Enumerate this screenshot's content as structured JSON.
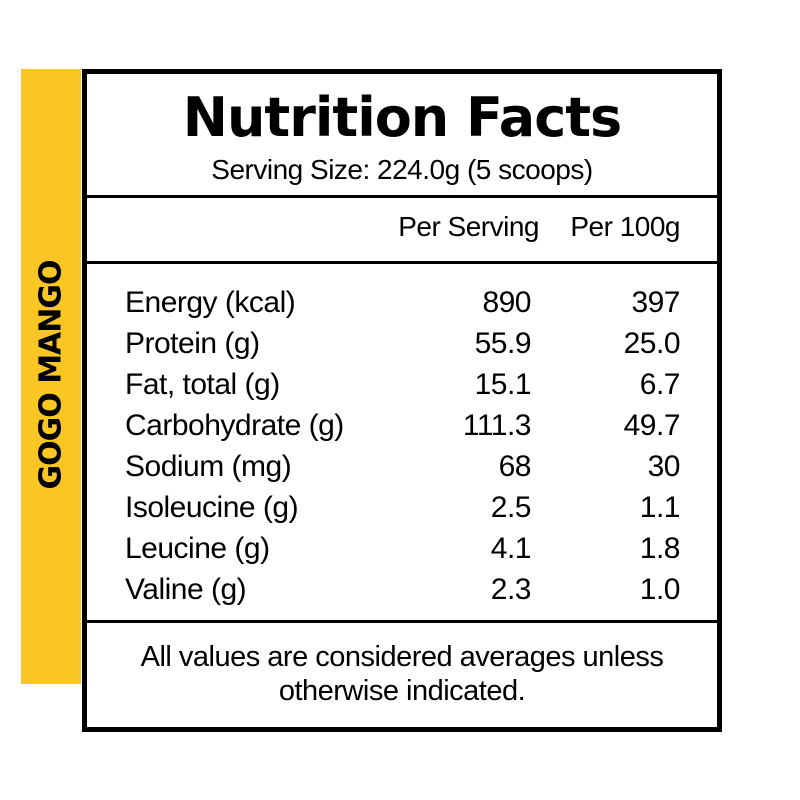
{
  "side_label": "GOGO MANGO",
  "title": "Nutrition Facts",
  "serving_size": "Serving Size: 224.0g (5 scoops)",
  "columns": {
    "per_serving": "Per Serving",
    "per_100g": "Per 100g"
  },
  "rows": [
    {
      "label": "Energy (kcal)",
      "per_serving": "890",
      "per_100g": "397"
    },
    {
      "label": "Protein (g)",
      "per_serving": "55.9",
      "per_100g": "25.0"
    },
    {
      "label": "Fat, total (g)",
      "per_serving": "15.1",
      "per_100g": "6.7"
    },
    {
      "label": "Carbohydrate (g)",
      "per_serving": "111.3",
      "per_100g": "49.7"
    },
    {
      "label": "Sodium (mg)",
      "per_serving": "68",
      "per_100g": "30"
    },
    {
      "label": "Isoleucine (g)",
      "per_serving": "2.5",
      "per_100g": "1.1"
    },
    {
      "label": "Leucine (g)",
      "per_serving": "4.1",
      "per_100g": "1.8"
    },
    {
      "label": "Valine (g)",
      "per_serving": "2.3",
      "per_100g": "1.0"
    }
  ],
  "footnote_line1": "All values are considered averages unless",
  "footnote_line2": "otherwise indicated.",
  "colors": {
    "accent": "#f9c623",
    "border": "#000000"
  }
}
